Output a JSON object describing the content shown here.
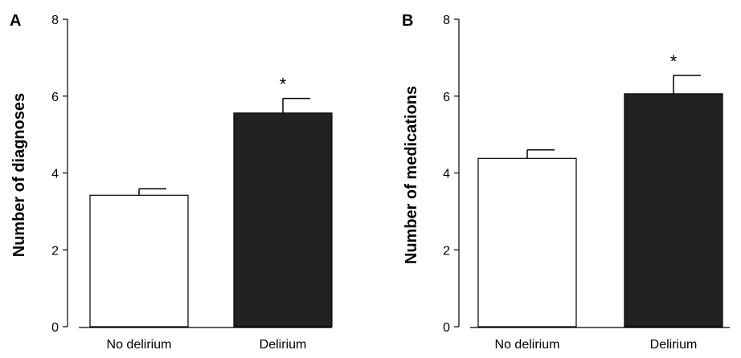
{
  "chart_data": [
    {
      "type": "bar",
      "panel": "A",
      "title": "",
      "xlabel": "",
      "ylabel": "Number of diagnoses",
      "ylim": [
        0,
        8
      ],
      "yticks": [
        "0",
        "2",
        "4",
        "6",
        "8"
      ],
      "categories": [
        "No delirium",
        "Delirium"
      ],
      "values": [
        3.42,
        5.56
      ],
      "error": [
        0.17,
        0.38
      ],
      "significance": [
        "",
        "*"
      ],
      "bar_colors": [
        "#ffffff",
        "#222222"
      ]
    },
    {
      "type": "bar",
      "panel": "B",
      "title": "",
      "xlabel": "",
      "ylabel": "Number of medications",
      "ylim": [
        0,
        8
      ],
      "yticks": [
        "0",
        "2",
        "4",
        "6",
        "8"
      ],
      "categories": [
        "No delirium",
        "Delirium"
      ],
      "values": [
        4.38,
        6.06
      ],
      "error": [
        0.22,
        0.48
      ],
      "significance": [
        "",
        "*"
      ],
      "bar_colors": [
        "#ffffff",
        "#222222"
      ]
    }
  ]
}
